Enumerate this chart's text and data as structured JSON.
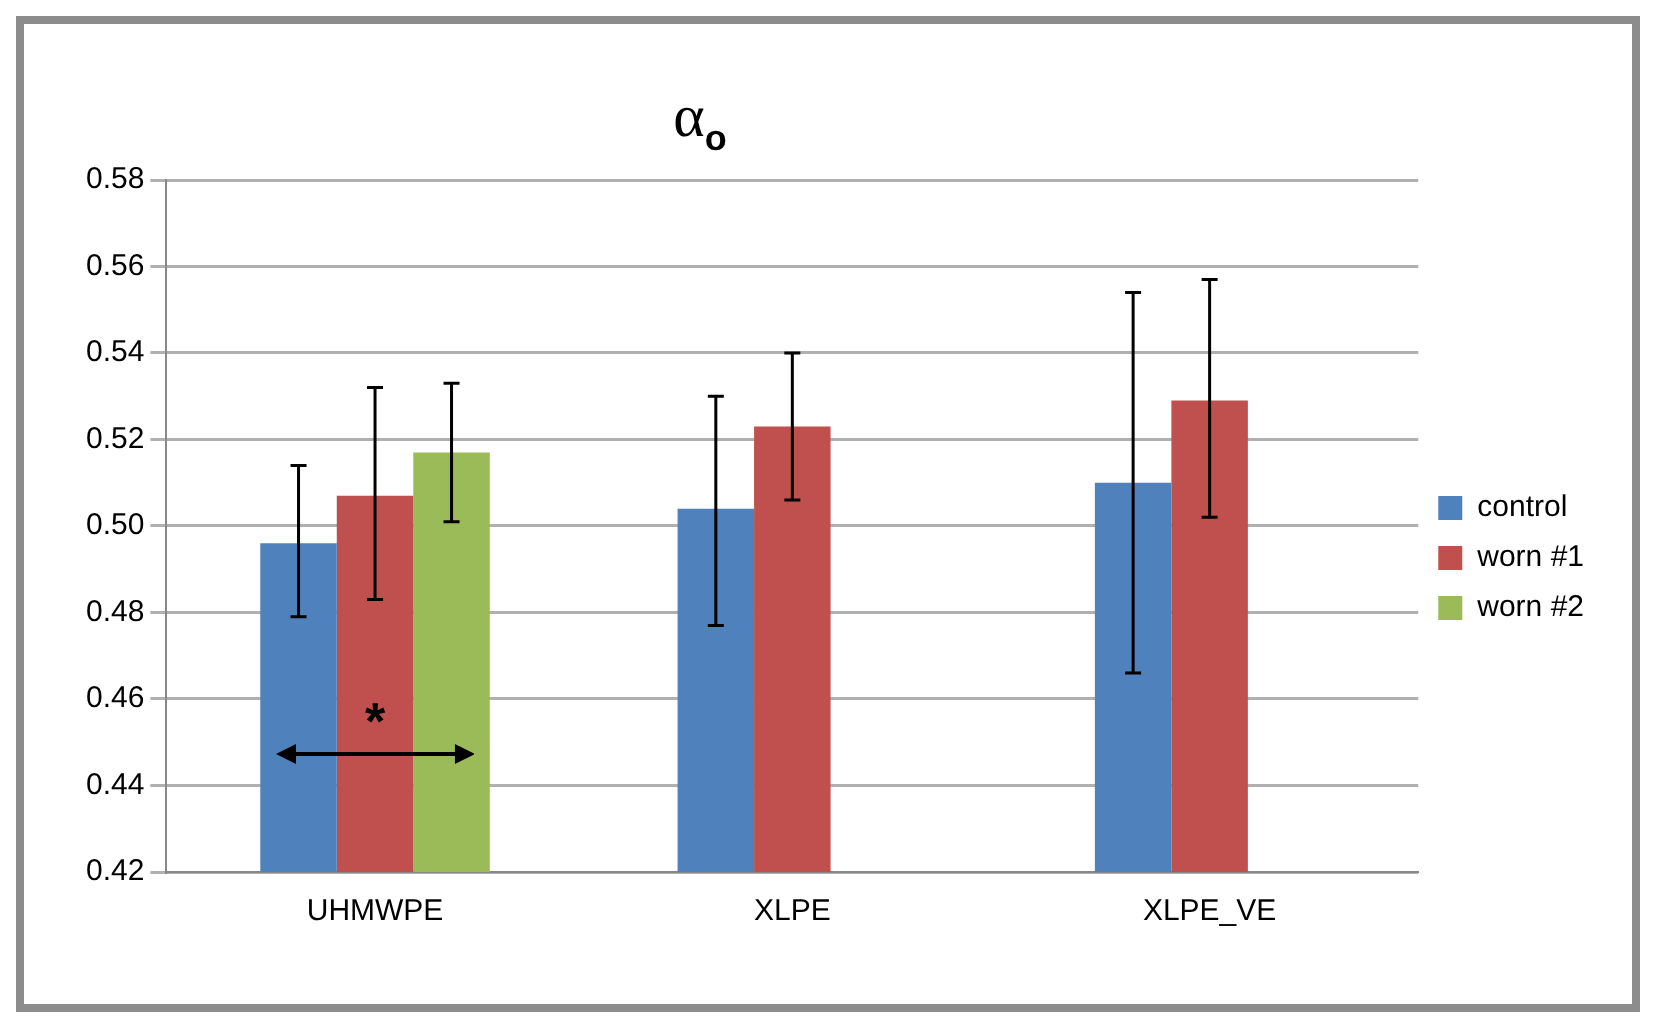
{
  "chart_data": {
    "type": "bar",
    "title": "α$_{o}$",
    "categories": [
      "UHMWPE",
      "XLPE",
      "XLPE_VE"
    ],
    "series": [
      {
        "name": "control",
        "color": "#4f81bd",
        "values": [
          0.496,
          0.504,
          0.51
        ],
        "errors": [
          [
            0.479,
            0.514
          ],
          [
            0.477,
            0.53
          ],
          [
            0.466,
            0.554
          ]
        ]
      },
      {
        "name": "worn #1",
        "color": "#c0504d",
        "values": [
          0.507,
          0.523,
          0.529
        ],
        "errors": [
          [
            0.483,
            0.532
          ],
          [
            0.506,
            0.54
          ],
          [
            0.502,
            0.557
          ]
        ]
      },
      {
        "name": "worn #2",
        "color": "#9bbb59",
        "values": [
          0.517,
          null,
          null
        ],
        "errors": [
          [
            0.501,
            0.533
          ],
          null,
          null
        ]
      }
    ],
    "ylim": [
      0.42,
      0.58
    ],
    "yticks": [
      {
        "value": 0.42,
        "label": "0.42"
      },
      {
        "value": 0.44,
        "label": "0.44"
      },
      {
        "value": 0.46,
        "label": "0.46"
      },
      {
        "value": 0.48,
        "label": "0.48"
      },
      {
        "value": 0.5,
        "label": "0.50"
      },
      {
        "value": 0.52,
        "label": "0.52"
      },
      {
        "value": 0.54,
        "label": "0.54"
      },
      {
        "value": 0.56,
        "label": "0.56"
      },
      {
        "value": 0.58,
        "label": "0.58"
      }
    ],
    "grid": "y",
    "legend": "right",
    "annotations": [
      "*"
    ]
  }
}
